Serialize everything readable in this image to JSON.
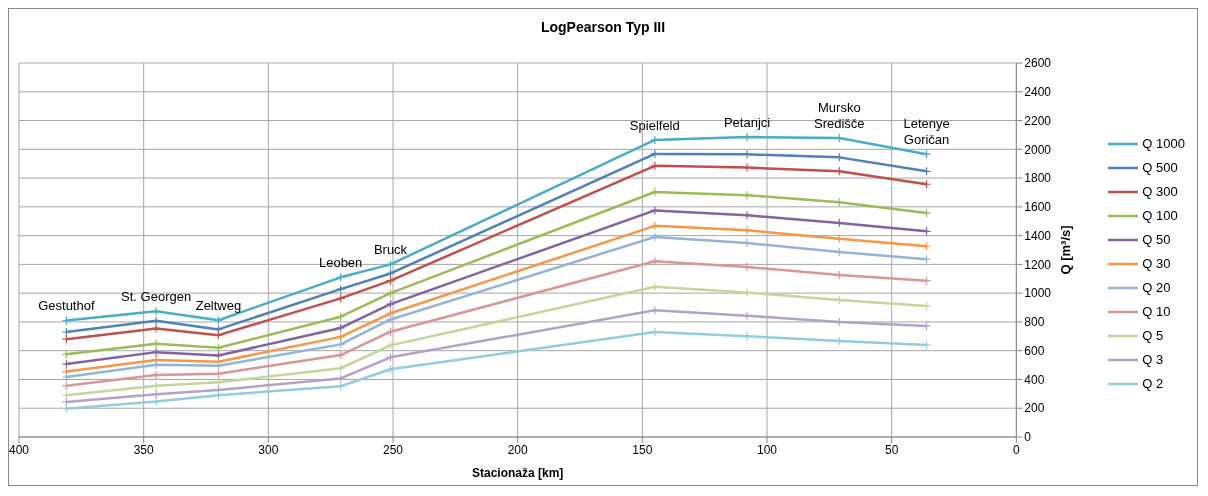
{
  "chart_data": {
    "type": "line",
    "title": "LogPearson Typ III",
    "xlabel": "Stacionaža [km]",
    "ylabel": "Q [m³/s]",
    "x": [
      381,
      345,
      320,
      271,
      251,
      145,
      108,
      71,
      36
    ],
    "series": [
      {
        "name": "Q 1000",
        "color": "#4bacc6",
        "values": [
          810,
          874,
          812,
          1110,
          1200,
          2065,
          2085,
          2079,
          1966
        ]
      },
      {
        "name": "Q 500",
        "color": "#4f81bd",
        "values": [
          730,
          808,
          748,
          1028,
          1137,
          1968,
          1965,
          1944,
          1847
        ]
      },
      {
        "name": "Q 300",
        "color": "#c0504d",
        "values": [
          680,
          755,
          708,
          964,
          1087,
          1885,
          1873,
          1847,
          1757
        ]
      },
      {
        "name": "Q 100",
        "color": "#9bbb59",
        "values": [
          575,
          649,
          620,
          836,
          1000,
          1703,
          1681,
          1632,
          1558
        ]
      },
      {
        "name": "Q 50",
        "color": "#8064a2",
        "values": [
          507,
          590,
          566,
          758,
          924,
          1575,
          1542,
          1487,
          1430
        ]
      },
      {
        "name": "Q 30",
        "color": "#f79646",
        "values": [
          455,
          535,
          523,
          696,
          860,
          1468,
          1437,
          1378,
          1326
        ]
      },
      {
        "name": "Q 20",
        "color": "#95b3d7",
        "values": [
          417,
          502,
          495,
          644,
          817,
          1390,
          1348,
          1286,
          1236
        ]
      },
      {
        "name": "Q 10",
        "color": "#d99694",
        "values": [
          357,
          431,
          440,
          570,
          732,
          1222,
          1182,
          1127,
          1087
        ]
      },
      {
        "name": "Q 5",
        "color": "#c3d69b",
        "values": [
          291,
          357,
          381,
          478,
          637,
          1044,
          1004,
          952,
          911
        ]
      },
      {
        "name": "Q 3",
        "color": "#b3a2c7",
        "values": [
          244,
          298,
          327,
          407,
          554,
          881,
          843,
          800,
          772
        ]
      },
      {
        "name": "Q 2",
        "color": "#93cddd",
        "values": [
          197,
          246,
          291,
          353,
          471,
          730,
          701,
          668,
          639
        ]
      }
    ],
    "annotations": [
      {
        "text": "Gestuthof",
        "x": 381,
        "y": 810
      },
      {
        "text": "St. Georgen",
        "x": 345,
        "y": 874
      },
      {
        "text": "Zeltweg",
        "x": 320,
        "y": 812
      },
      {
        "text": "Leoben",
        "x": 271,
        "y": 1110
      },
      {
        "text": "Bruck",
        "x": 251,
        "y": 1200
      },
      {
        "text": "Spielfeld",
        "x": 145,
        "y": 2065
      },
      {
        "text": "Petanjci",
        "x": 108,
        "y": 2085
      },
      {
        "text": "Mursko\nSredišče",
        "x": 71,
        "y": 2079
      },
      {
        "text": "Letenye\nGoričan",
        "x": 36,
        "y": 1966
      }
    ],
    "xlim": [
      400,
      0
    ],
    "xticks": [
      400,
      350,
      300,
      250,
      200,
      150,
      100,
      50,
      0
    ],
    "ylim": [
      0,
      2600
    ],
    "yticks": [
      0,
      200,
      400,
      600,
      800,
      1000,
      1200,
      1400,
      1600,
      1800,
      2000,
      2200,
      2400,
      2600
    ],
    "grid": true,
    "legend": "right",
    "marker": "cross",
    "line_style": "solid"
  }
}
